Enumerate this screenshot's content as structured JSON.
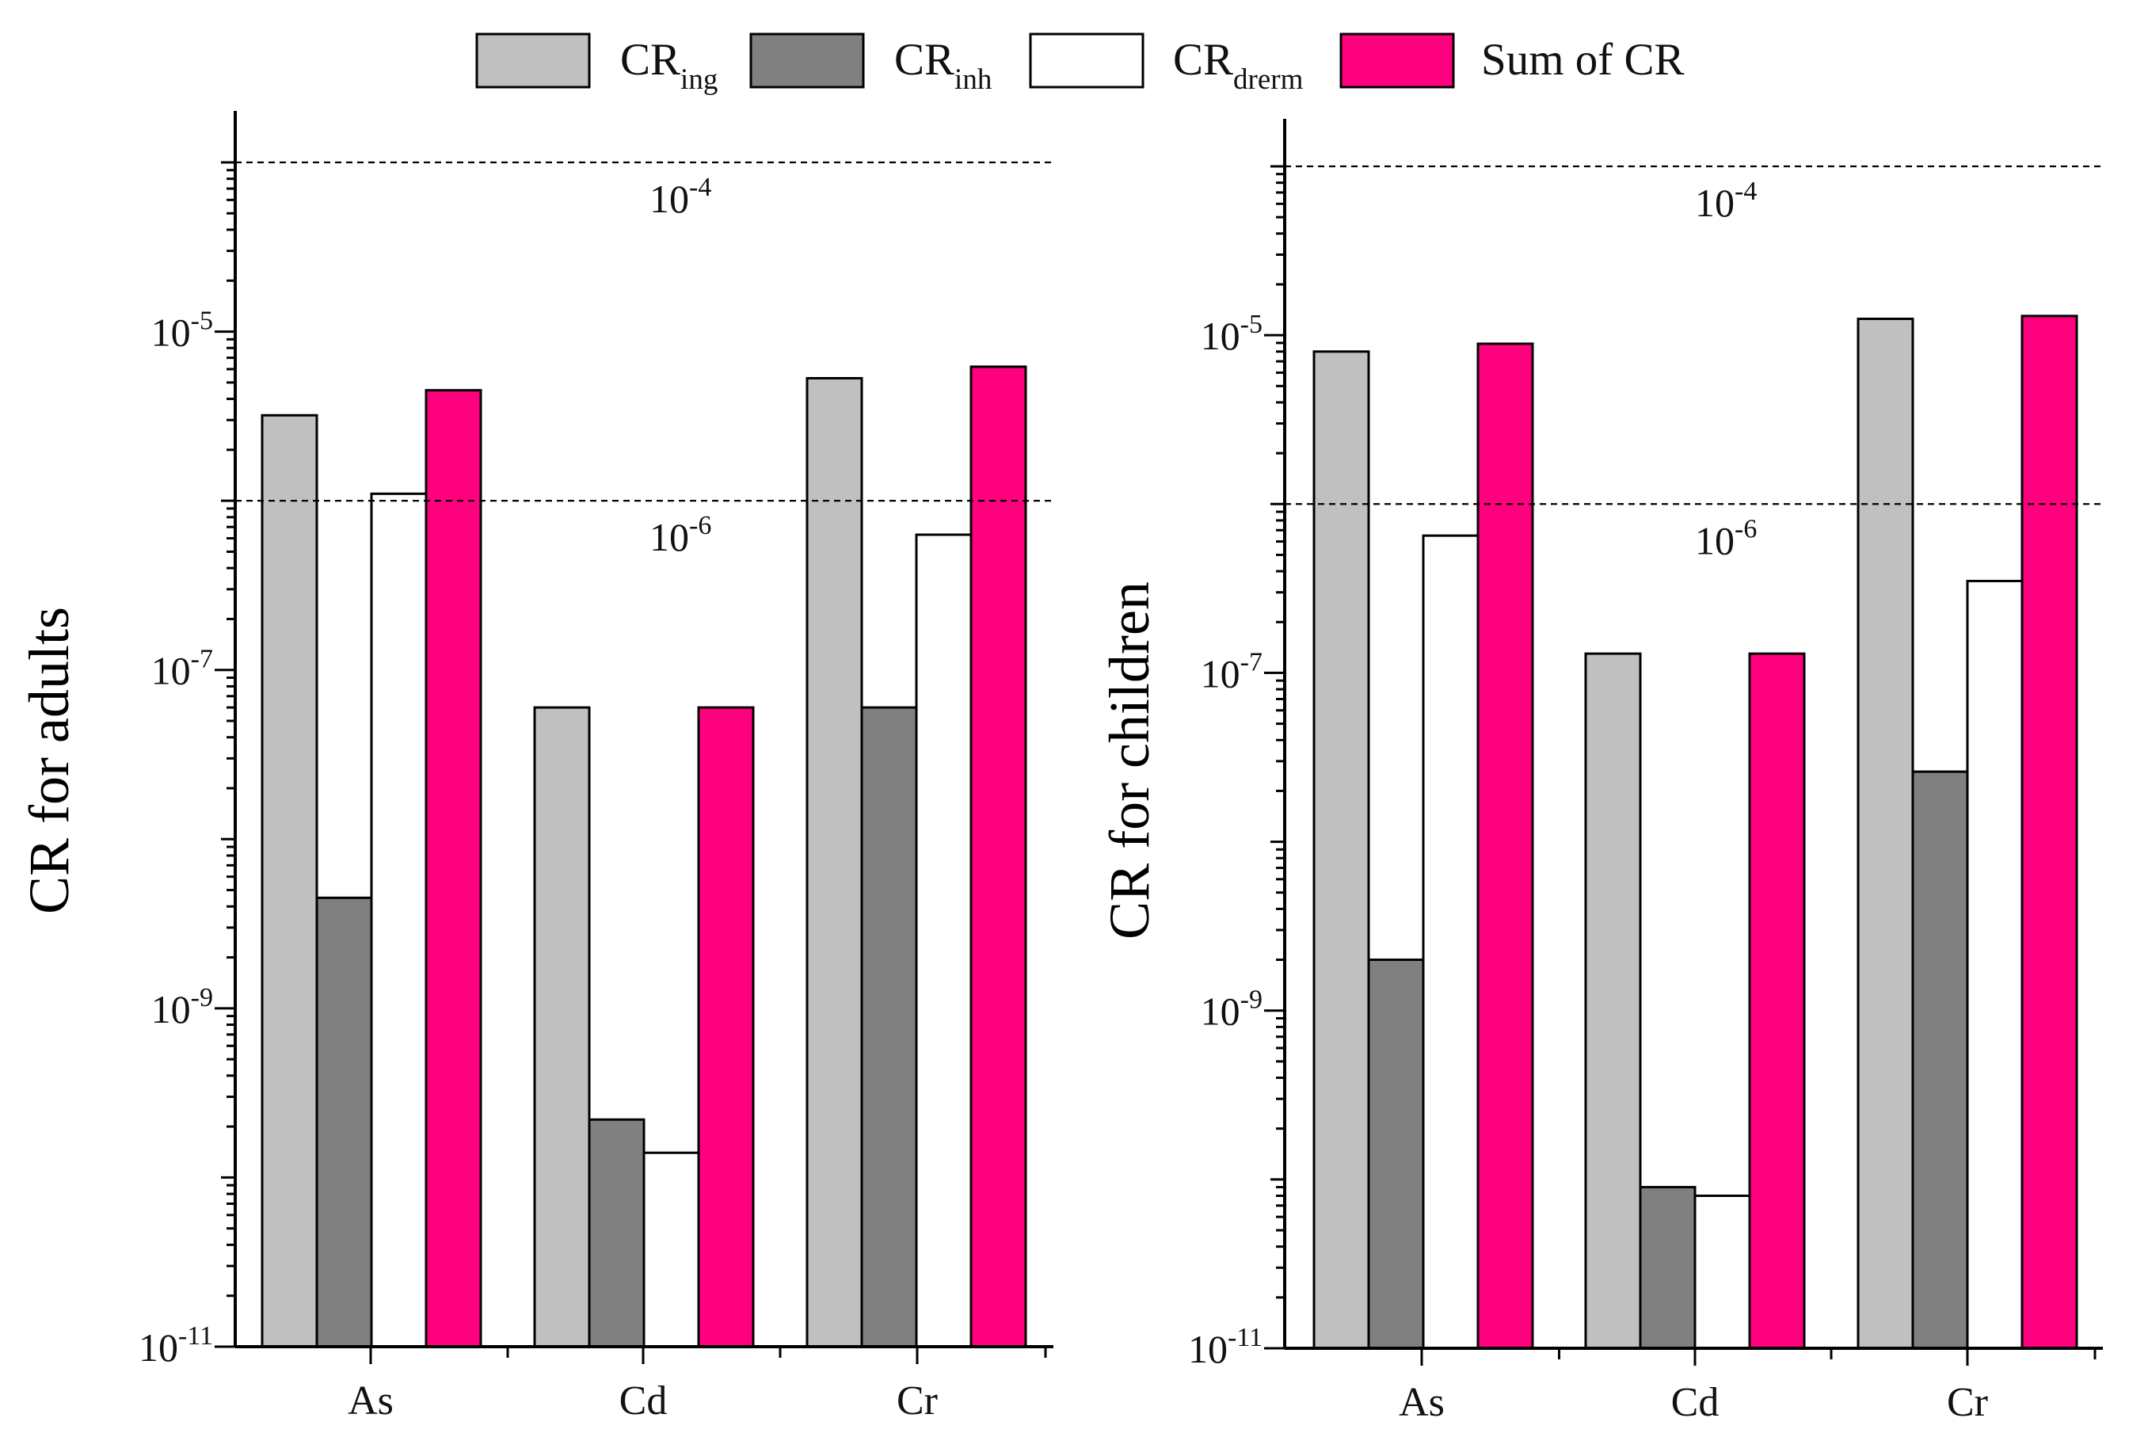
{
  "legend": [
    {
      "key": "ing",
      "label_main": "CR",
      "label_sub": "ing",
      "color": "#c0c0c0"
    },
    {
      "key": "inh",
      "label_main": "CR",
      "label_sub": "inh",
      "color": "#808080"
    },
    {
      "key": "derm",
      "label_main": "CR",
      "label_sub": "drerm",
      "color": "#ffffff"
    },
    {
      "key": "sum",
      "label_main": "Sum of CR",
      "label_sub": "",
      "color": "#ff007f"
    }
  ],
  "chart_data": [
    {
      "id": "adults",
      "type": "bar",
      "scale": "log",
      "ylabel": "CR for adults",
      "ylim": [
        1e-11,
        0.0001
      ],
      "yticks": [
        {
          "value": 1e-11,
          "base": "10",
          "exp": "-11"
        },
        {
          "value": 1e-09,
          "base": "10",
          "exp": "-9"
        },
        {
          "value": 1e-07,
          "base": "10",
          "exp": "-7"
        },
        {
          "value": 1e-05,
          "base": "10",
          "exp": "-5"
        }
      ],
      "reference_lines": [
        {
          "value": 0.0001,
          "label_base": "10",
          "label_exp": "-4"
        },
        {
          "value": 1e-06,
          "label_base": "10",
          "label_exp": "-6"
        }
      ],
      "categories": [
        "As",
        "Cd",
        "Cr"
      ],
      "series": [
        {
          "key": "ing",
          "name": "CR_ing",
          "values": [
            3.2e-06,
            6e-08,
            5.3e-06
          ]
        },
        {
          "key": "inh",
          "name": "CR_inh",
          "values": [
            4.5e-09,
            2.2e-10,
            6e-08
          ]
        },
        {
          "key": "derm",
          "name": "CR_drerm",
          "values": [
            1.1e-06,
            1.4e-10,
            6.3e-07
          ]
        },
        {
          "key": "sum",
          "name": "Sum of CR",
          "values": [
            4.5e-06,
            6e-08,
            6.2e-06
          ]
        }
      ]
    },
    {
      "id": "children",
      "type": "bar",
      "scale": "log",
      "ylabel": "CR for children",
      "ylim": [
        1e-11,
        0.0001
      ],
      "yticks": [
        {
          "value": 1e-11,
          "base": "10",
          "exp": "-11"
        },
        {
          "value": 1e-09,
          "base": "10",
          "exp": "-9"
        },
        {
          "value": 1e-07,
          "base": "10",
          "exp": "-7"
        },
        {
          "value": 1e-05,
          "base": "10",
          "exp": "-5"
        }
      ],
      "reference_lines": [
        {
          "value": 0.0001,
          "label_base": "10",
          "label_exp": "-4"
        },
        {
          "value": 1e-06,
          "label_base": "10",
          "label_exp": "-6"
        }
      ],
      "categories": [
        "As",
        "Cd",
        "Cr"
      ],
      "series": [
        {
          "key": "ing",
          "name": "CR_ing",
          "values": [
            8e-06,
            1.3e-07,
            1.25e-05
          ]
        },
        {
          "key": "inh",
          "name": "CR_inh",
          "values": [
            2e-09,
            9e-11,
            2.6e-08
          ]
        },
        {
          "key": "derm",
          "name": "CR_drerm",
          "values": [
            6.5e-07,
            8e-11,
            3.5e-07
          ]
        },
        {
          "key": "sum",
          "name": "Sum of CR",
          "values": [
            8.9e-06,
            1.3e-07,
            1.3e-05
          ]
        }
      ]
    }
  ]
}
